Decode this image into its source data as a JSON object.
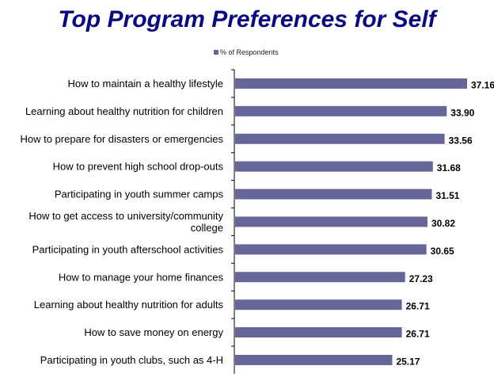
{
  "chart_data": {
    "type": "bar",
    "orientation": "horizontal",
    "title": "Top Program Preferences for Self",
    "legend": "top",
    "series": [
      {
        "name": "% of Respondents",
        "color": "#666699",
        "values": [
          37.16,
          33.9,
          33.56,
          31.68,
          31.51,
          30.82,
          30.65,
          27.23,
          26.71,
          26.71,
          25.17
        ],
        "value_labels": [
          "37.16",
          "33.90",
          "33.56",
          "31.68",
          "31.51",
          "30.82",
          "30.65",
          "27.23",
          "26.71",
          "26.71",
          "25.17"
        ]
      }
    ],
    "categories": [
      [
        "How to maintain a healthy lifestyle"
      ],
      [
        "Learning about healthy nutrition for children"
      ],
      [
        "How to prepare for disasters or emergencies"
      ],
      [
        "How to prevent high school drop-outs"
      ],
      [
        "Participating in youth summer camps"
      ],
      [
        "How to get access to university/community",
        "college"
      ],
      [
        "Participating in youth afterschool activities"
      ],
      [
        "How to manage your home finances"
      ],
      [
        "Learning about healthy nutrition for adults"
      ],
      [
        "How to save money on energy"
      ],
      [
        "Participating in youth clubs, such as 4-H"
      ]
    ],
    "xlim": [
      0,
      37.16
    ],
    "grid": false
  }
}
